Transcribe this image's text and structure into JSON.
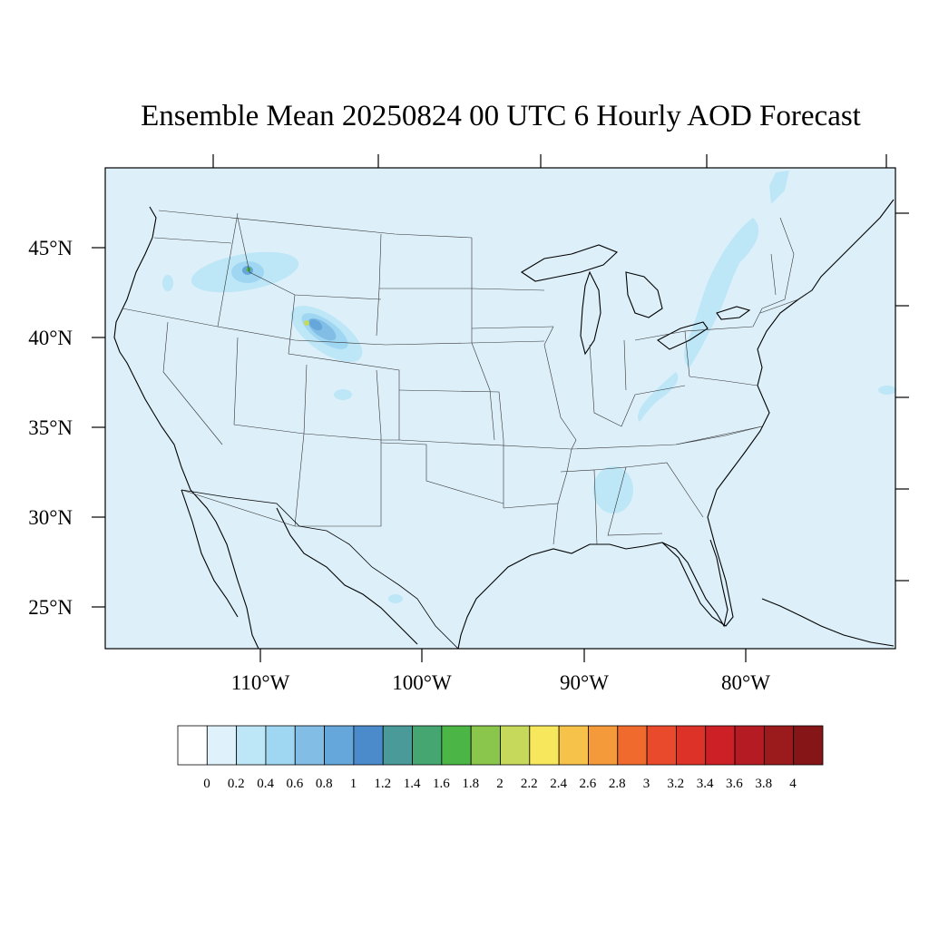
{
  "title": "Ensemble Mean 20250824 00 UTC 6 Hourly AOD Forecast",
  "map": {
    "region": "Contiguous United States",
    "lat_labels": [
      "45°N",
      "40°N",
      "35°N",
      "30°N",
      "25°N"
    ],
    "lon_labels": [
      "110°W",
      "100°W",
      "90°W",
      "80°W"
    ],
    "background_value_color": "#ddf0fa",
    "land_line_color": "#000000"
  },
  "colorbar": {
    "labels": [
      "0",
      "0.2",
      "0.4",
      "0.6",
      "0.8",
      "1",
      "1.2",
      "1.4",
      "1.6",
      "1.8",
      "2",
      "2.2",
      "2.4",
      "2.6",
      "2.8",
      "3",
      "3.2",
      "3.4",
      "3.6",
      "3.8",
      "4"
    ],
    "colors": [
      "#ffffff",
      "#dff2fb",
      "#bde6f7",
      "#9fd7f3",
      "#82bde6",
      "#65a6db",
      "#4b8bcb",
      "#4a9a9a",
      "#46a672",
      "#4bb546",
      "#8bc64c",
      "#c6d95a",
      "#f7e75d",
      "#f6c24a",
      "#f59a3b",
      "#f06a2d",
      "#e94a2b",
      "#dd3227",
      "#cc1f26",
      "#b51b22",
      "#9b1a1c",
      "#861518"
    ]
  }
}
